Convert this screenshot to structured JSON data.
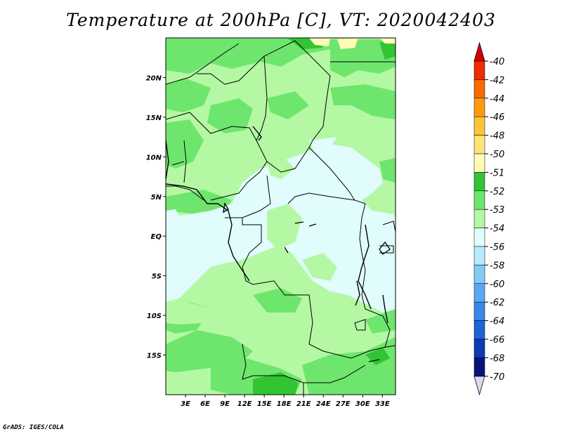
{
  "title": "Temperature at 200hPa [C], VT: 2020042403",
  "credit": "GrADS: IGES/COLA",
  "map": {
    "lat_ticks": [
      "20N",
      "15N",
      "10N",
      "5N",
      "EQ",
      "5S",
      "10S",
      "15S"
    ],
    "lat_values": [
      20,
      15,
      10,
      5,
      0,
      -5,
      -10,
      -15
    ],
    "lon_ticks": [
      "3E",
      "6E",
      "9E",
      "12E",
      "15E",
      "18E",
      "21E",
      "24E",
      "27E",
      "30E",
      "33E"
    ],
    "lon_values": [
      3,
      6,
      9,
      12,
      15,
      18,
      21,
      24,
      27,
      30,
      33
    ],
    "lat_range": [
      -20,
      25
    ],
    "lon_range": [
      0,
      35
    ]
  },
  "colorbar": {
    "levels": [
      "-40",
      "-42",
      "-44",
      "-46",
      "-48",
      "-50",
      "-51",
      "-52",
      "-53",
      "-54",
      "-56",
      "-58",
      "-60",
      "-62",
      "-64",
      "-66",
      "-68",
      "-70"
    ],
    "colors": [
      "#d60000",
      "#ef2b00",
      "#f86a00",
      "#fb9d0a",
      "#fcc33b",
      "#fde47a",
      "#fffcb8",
      "#33c433",
      "#6ee66e",
      "#b4f8a4",
      "#e0fcfc",
      "#b4ecfc",
      "#82cbf6",
      "#5aa8f0",
      "#3a88e6",
      "#1e64d6",
      "#0c3cb0",
      "#06147a"
    ]
  },
  "colors": {
    "land_53": "#b4f8a4",
    "band_52": "#6ee66e",
    "band_51": "#33c433",
    "band_54": "#e0fcfc",
    "band_50": "#fffcb8"
  }
}
